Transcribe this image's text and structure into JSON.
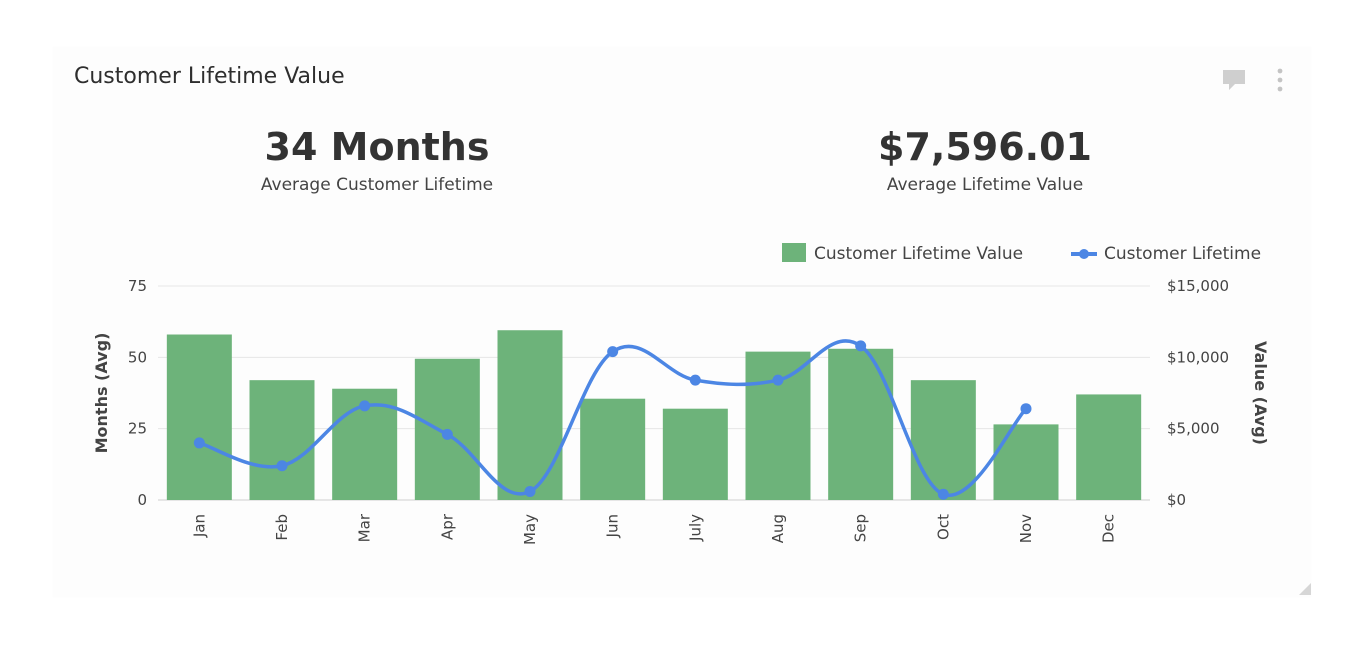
{
  "card": {
    "title": "Customer Lifetime Value"
  },
  "kpis": [
    {
      "value": "34 Months",
      "label": "Average Customer Lifetime"
    },
    {
      "value": "$7,596.01",
      "label": "Average Lifetime Value"
    }
  ],
  "icons": {
    "comment": "comment-icon",
    "menu": "more-vertical-icon",
    "resize": "resize-handle-icon"
  },
  "colors": {
    "bar": "#6db37a",
    "line": "#4c86e4",
    "grid": "#e6e6e6"
  },
  "chart_data": {
    "type": "bar",
    "categories": [
      "Jan",
      "Feb",
      "Mar",
      "Apr",
      "May",
      "Jun",
      "July",
      "Aug",
      "Sep",
      "Oct",
      "Nov",
      "Dec"
    ],
    "series": [
      {
        "name": "Customer Lifetime Value",
        "type": "bar",
        "axis": "right",
        "values": [
          11600,
          8400,
          7800,
          9900,
          11900,
          7100,
          6400,
          10400,
          10600,
          8400,
          5300,
          7400
        ]
      },
      {
        "name": "Customer Lifetime",
        "type": "line",
        "axis": "left",
        "values": [
          20,
          12,
          33,
          23,
          3,
          52,
          42,
          42,
          54,
          2,
          32,
          null
        ]
      }
    ],
    "y_left": {
      "label": "Months (Avg)",
      "min": 0,
      "max": 75,
      "ticks": [
        0,
        25,
        50,
        75
      ]
    },
    "y_right": {
      "label": "Value (Avg)",
      "min": 0,
      "max": 15000,
      "ticks": [
        0,
        5000,
        10000,
        15000
      ],
      "tick_labels": [
        "$0",
        "$5,000",
        "$10,000",
        "$15,000"
      ]
    },
    "grid": true,
    "legend": "top-right"
  }
}
